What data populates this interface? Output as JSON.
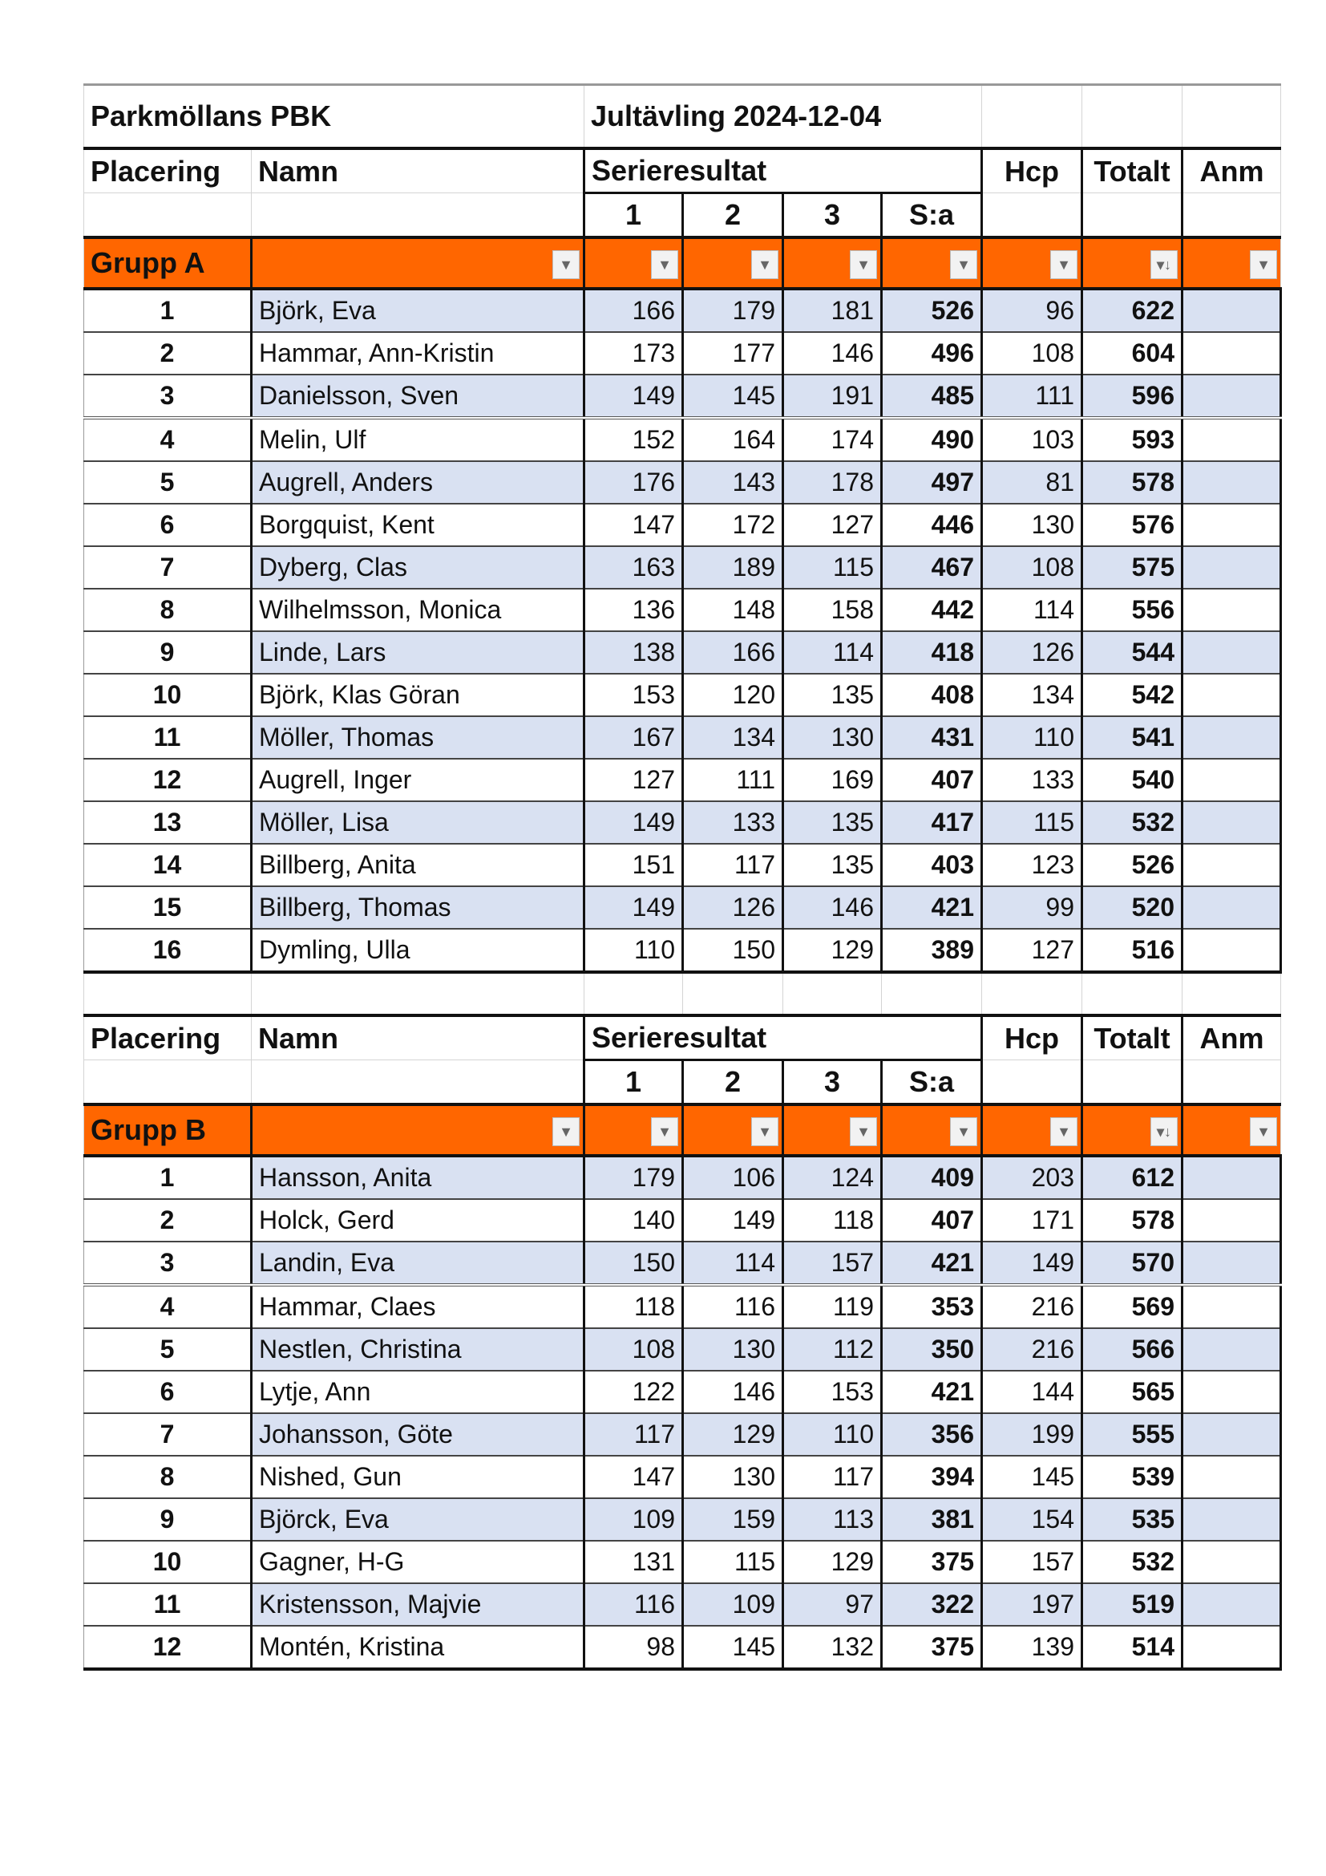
{
  "club": "Parkmöllans PBK",
  "event": "Jultävling 2024-12-04",
  "headers": {
    "placering": "Placering",
    "namn": "Namn",
    "serieresultat": "Serieresultat",
    "hcp": "Hcp",
    "totalt": "Totalt",
    "anm": "Anm",
    "s1": "1",
    "s2": "2",
    "s3": "3",
    "sum": "S:a"
  },
  "colors": {
    "group_header": "#ff6600",
    "band": "#d9e1f2"
  },
  "groups": [
    {
      "name": "Grupp A",
      "rows": [
        [
          "1",
          "Björk, Eva",
          "166",
          "179",
          "181",
          "526",
          "96",
          "622"
        ],
        [
          "2",
          "Hammar, Ann-Kristin",
          "173",
          "177",
          "146",
          "496",
          "108",
          "604"
        ],
        [
          "3",
          "Danielsson, Sven",
          "149",
          "145",
          "191",
          "485",
          "111",
          "596"
        ],
        [
          "4",
          "Melin, Ulf",
          "152",
          "164",
          "174",
          "490",
          "103",
          "593"
        ],
        [
          "5",
          "Augrell, Anders",
          "176",
          "143",
          "178",
          "497",
          "81",
          "578"
        ],
        [
          "6",
          "Borgquist, Kent",
          "147",
          "172",
          "127",
          "446",
          "130",
          "576"
        ],
        [
          "7",
          "Dyberg, Clas",
          "163",
          "189",
          "115",
          "467",
          "108",
          "575"
        ],
        [
          "8",
          "Wilhelmsson, Monica",
          "136",
          "148",
          "158",
          "442",
          "114",
          "556"
        ],
        [
          "9",
          "Linde, Lars",
          "138",
          "166",
          "114",
          "418",
          "126",
          "544"
        ],
        [
          "10",
          "Björk, Klas Göran",
          "153",
          "120",
          "135",
          "408",
          "134",
          "542"
        ],
        [
          "11",
          "Möller, Thomas",
          "167",
          "134",
          "130",
          "431",
          "110",
          "541"
        ],
        [
          "12",
          "Augrell, Inger",
          "127",
          "111",
          "169",
          "407",
          "133",
          "540"
        ],
        [
          "13",
          "Möller, Lisa",
          "149",
          "133",
          "135",
          "417",
          "115",
          "532"
        ],
        [
          "14",
          "Billberg, Anita",
          "151",
          "117",
          "135",
          "403",
          "123",
          "526"
        ],
        [
          "15",
          "Billberg, Thomas",
          "149",
          "126",
          "146",
          "421",
          "99",
          "520"
        ],
        [
          "16",
          "Dymling, Ulla",
          "110",
          "150",
          "129",
          "389",
          "127",
          "516"
        ]
      ]
    },
    {
      "name": "Grupp B",
      "rows": [
        [
          "1",
          "Hansson, Anita",
          "179",
          "106",
          "124",
          "409",
          "203",
          "612"
        ],
        [
          "2",
          "Holck, Gerd",
          "140",
          "149",
          "118",
          "407",
          "171",
          "578"
        ],
        [
          "3",
          "Landin, Eva",
          "150",
          "114",
          "157",
          "421",
          "149",
          "570"
        ],
        [
          "4",
          "Hammar, Claes",
          "118",
          "116",
          "119",
          "353",
          "216",
          "569"
        ],
        [
          "5",
          "Nestlen, Christina",
          "108",
          "130",
          "112",
          "350",
          "216",
          "566"
        ],
        [
          "6",
          "Lytje, Ann",
          "122",
          "146",
          "153",
          "421",
          "144",
          "565"
        ],
        [
          "7",
          "Johansson, Göte",
          "117",
          "129",
          "110",
          "356",
          "199",
          "555"
        ],
        [
          "8",
          "Nished, Gun",
          "147",
          "130",
          "117",
          "394",
          "145",
          "539"
        ],
        [
          "9",
          "Björck, Eva",
          "109",
          "159",
          "113",
          "381",
          "154",
          "535"
        ],
        [
          "10",
          "Gagner, H-G",
          "131",
          "115",
          "129",
          "375",
          "157",
          "532"
        ],
        [
          "11",
          "Kristensson, Majvie",
          "116",
          "109",
          "97",
          "322",
          "197",
          "519"
        ],
        [
          "12",
          "Montén, Kristina",
          "98",
          "145",
          "132",
          "375",
          "139",
          "514"
        ]
      ]
    }
  ]
}
